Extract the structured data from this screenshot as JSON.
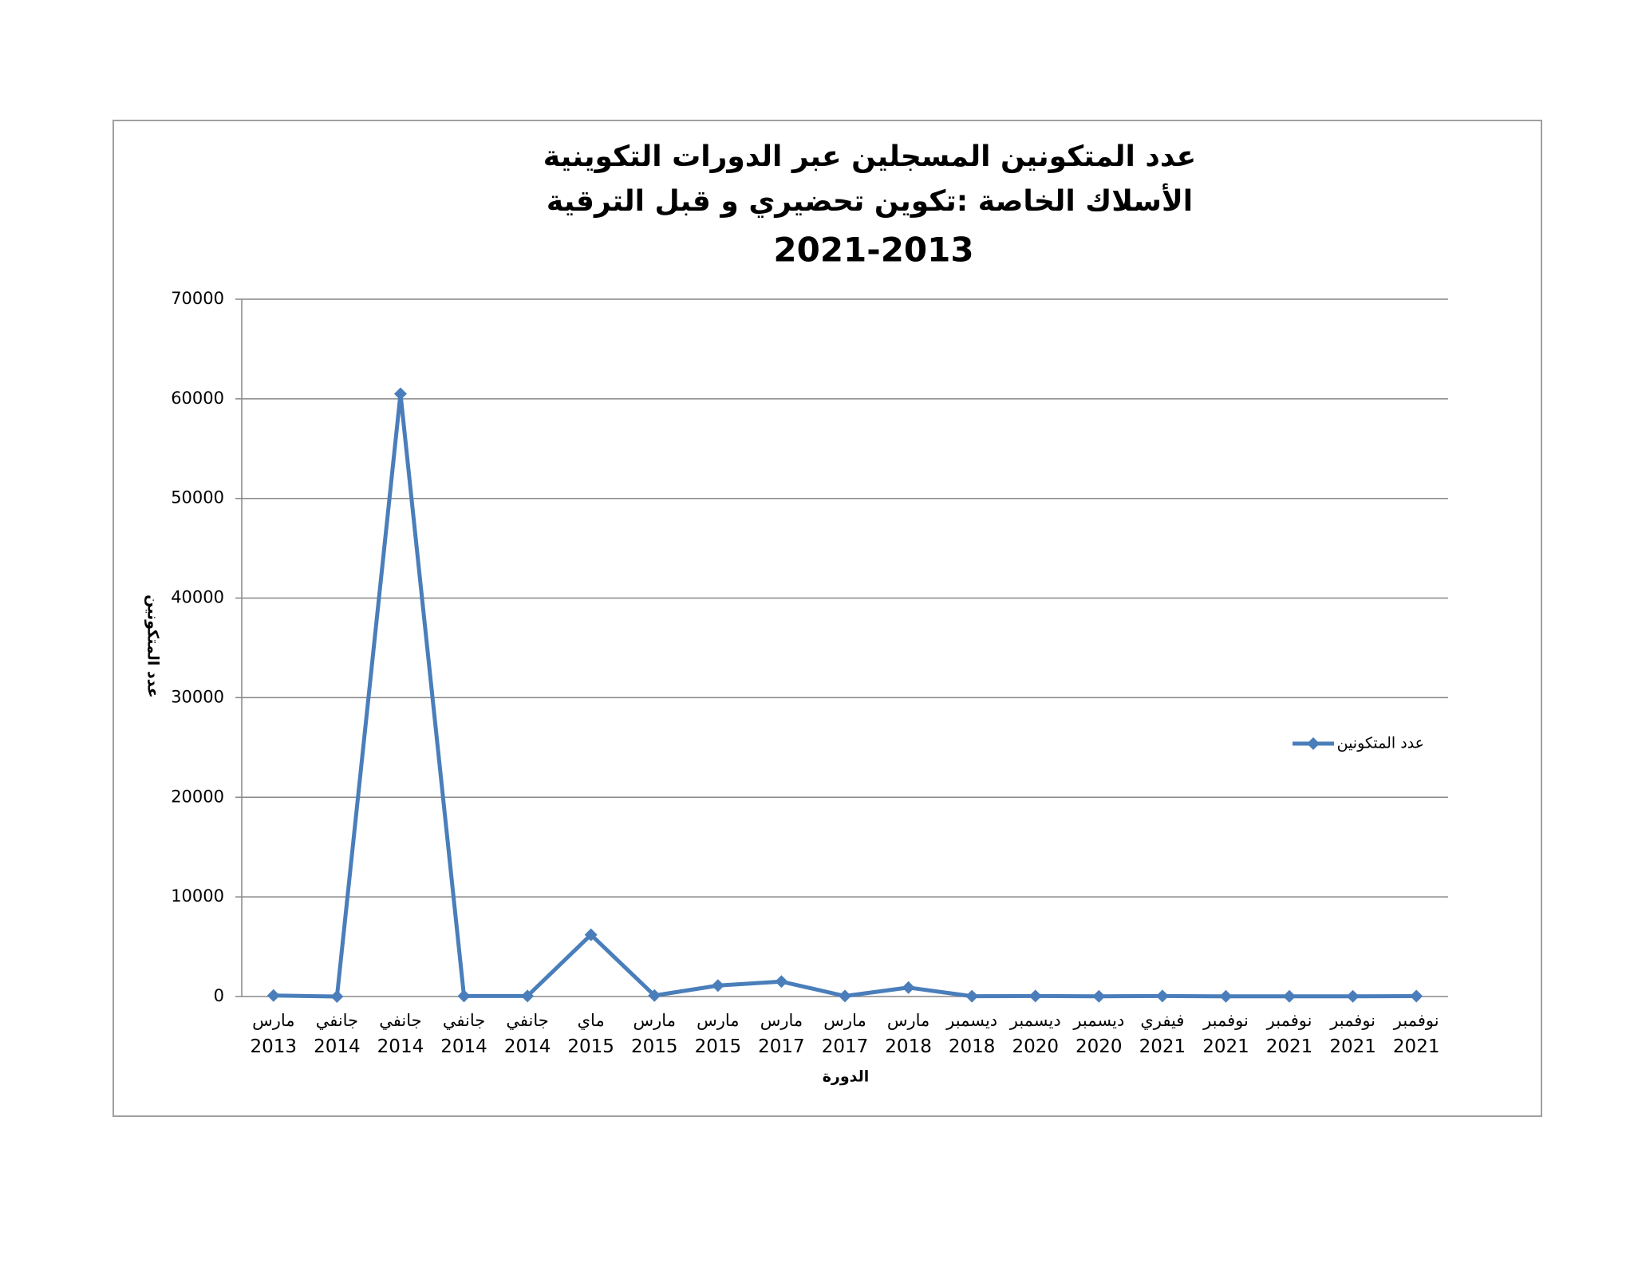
{
  "chart_data": {
    "type": "line",
    "title": [
      "عدد المتكونين المسجلين عبر الدورات التكوينية",
      "الأسلاك الخاصة :تكوين تحضيري و قبل الترقية",
      "2021-2013"
    ],
    "x_label": "الدورة",
    "y_label": "عدد المتكونين",
    "categories": [
      [
        "مارس",
        "2013"
      ],
      [
        "جانفي",
        "2014"
      ],
      [
        "جانفي",
        "2014"
      ],
      [
        "جانفي",
        "2014"
      ],
      [
        "جانفي",
        "2014"
      ],
      [
        "ماي",
        "2015"
      ],
      [
        "مارس",
        "2015"
      ],
      [
        "مارس",
        "2015"
      ],
      [
        "مارس",
        "2017"
      ],
      [
        "مارس",
        "2017"
      ],
      [
        "مارس",
        "2018"
      ],
      [
        "ديسمبر",
        "2018"
      ],
      [
        "ديسمبر",
        "2020"
      ],
      [
        "ديسمبر",
        "2020"
      ],
      [
        "فيفري",
        "2021"
      ],
      [
        "نوفمبر",
        "2021"
      ],
      [
        "نوفمبر",
        "2021"
      ],
      [
        "نوفمبر",
        "2021"
      ],
      [
        "نوفمبر",
        "2021"
      ]
    ],
    "series": [
      {
        "name": "عدد المتكونين",
        "color": "#4a7ebb",
        "values": [
          100,
          0,
          60500,
          50,
          50,
          6200,
          100,
          1100,
          1500,
          50,
          900,
          30,
          50,
          20,
          50,
          20,
          20,
          20,
          40
        ]
      }
    ],
    "ylim": [
      0,
      70000
    ],
    "yticks": [
      0,
      10000,
      20000,
      30000,
      40000,
      50000,
      60000,
      70000
    ],
    "grid": true,
    "legend": "right"
  }
}
